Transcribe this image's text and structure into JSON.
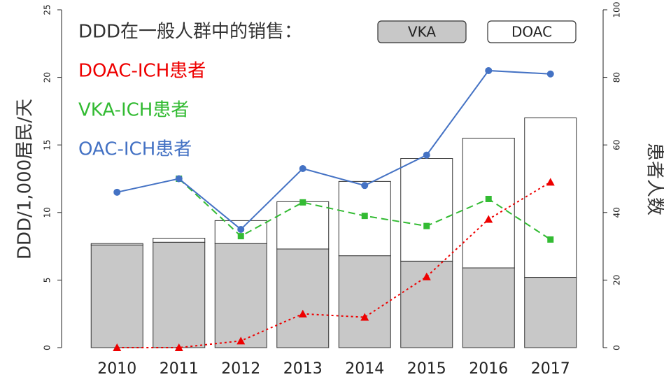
{
  "chart_data": {
    "type": "bar+line",
    "title": "DDD在一般人群中的销售：",
    "ylabel": "DDD/1,000居民/天",
    "y2label": "患者人数",
    "categories": [
      "2010",
      "2011",
      "2012",
      "2013",
      "2014",
      "2015",
      "2016",
      "2017"
    ],
    "stacked": true,
    "series": [
      {
        "name": "VKA",
        "type": "bar",
        "color": "#c8c8c8",
        "values": [
          7.6,
          7.8,
          7.7,
          7.3,
          6.8,
          6.4,
          5.9,
          5.2
        ]
      },
      {
        "name": "DOAC",
        "type": "bar",
        "color": "#ffffff",
        "values": [
          0.1,
          0.3,
          1.7,
          3.5,
          5.5,
          7.6,
          9.6,
          11.8
        ]
      },
      {
        "name": "DOAC-ICH患者",
        "type": "line",
        "axis": "y2",
        "color": "#ee0000",
        "dash": "dotted",
        "marker": "triangle",
        "values": [
          0,
          0,
          2,
          10,
          9,
          21,
          38,
          49
        ]
      },
      {
        "name": "VKA-ICH患者",
        "type": "line",
        "axis": "y2",
        "color": "#33bb33",
        "dash": "dashed",
        "marker": "square",
        "values": [
          null,
          50,
          33,
          43,
          39,
          36,
          44,
          32
        ]
      },
      {
        "name": "OAC-ICH患者",
        "type": "line",
        "axis": "y2",
        "color": "#4472c4",
        "dash": "solid",
        "marker": "circle",
        "values": [
          46,
          50,
          35,
          53,
          48,
          57,
          82,
          81
        ]
      }
    ],
    "ylim": [
      0,
      25
    ],
    "yticks": [
      0,
      5,
      10,
      15,
      20,
      25
    ],
    "y2lim": [
      0,
      100
    ],
    "y2ticks": [
      0,
      20,
      40,
      60,
      80,
      100
    ]
  }
}
